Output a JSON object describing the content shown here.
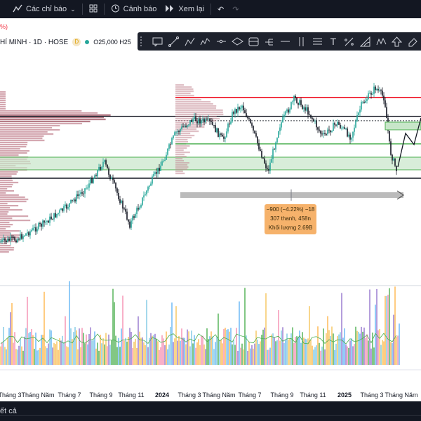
{
  "toolbar": {
    "indicators_label": "Các chỉ báo",
    "alerts_label": "Cảnh báo",
    "replay_label": "Xem lại"
  },
  "legend": {
    "pct_fragment": "%)",
    "symbol": "HÍ MINH · 1D · HOSE",
    "d_badge": "D",
    "ohlc": "O25,000  H25"
  },
  "drawing_tools": [
    "callout-icon",
    "trend-line-icon",
    "path-icon",
    "polyline-icon",
    "horizontal-ray-icon",
    "ellipse-icon",
    "parallel-channel-icon",
    "pitchfork-icon",
    "long-ray-icon",
    "vertical-line-icon",
    "fib-icon",
    "text-icon",
    "price-range-icon",
    "curve-icon",
    "pattern-icon",
    "arrow-up-icon",
    "eraser-icon"
  ],
  "measure": {
    "line1": "−900 (−4.22%) −18",
    "line2": "307 thanh, 458n",
    "line3": "Khối lượng 2.69B"
  },
  "x_axis": [
    {
      "label": "Tháng 3",
      "pos": 14
    },
    {
      "label": "Tháng Năm",
      "pos": 54
    },
    {
      "label": "Tháng 7",
      "pos": 99
    },
    {
      "label": "Tháng 9",
      "pos": 144
    },
    {
      "label": "Tháng 11",
      "pos": 187
    },
    {
      "label": "2024",
      "pos": 231
    },
    {
      "label": "Tháng 3",
      "pos": 270
    },
    {
      "label": "Tháng Năm",
      "pos": 312
    },
    {
      "label": "Tháng 7",
      "pos": 356
    },
    {
      "label": "Tháng 9",
      "pos": 402
    },
    {
      "label": "Tháng 11",
      "pos": 446
    },
    {
      "label": "2025",
      "pos": 491
    },
    {
      "label": "Tháng 3",
      "pos": 530
    },
    {
      "label": "Tháng Năm",
      "pos": 572
    }
  ],
  "bottom": {
    "label": "ết cả"
  },
  "colors": {
    "up": "#26a69a",
    "down": "#131722",
    "red_line": "#f23645",
    "green_line": "#4caf50",
    "zone": "#c8e6c9",
    "profile": "#b5727e"
  }
}
